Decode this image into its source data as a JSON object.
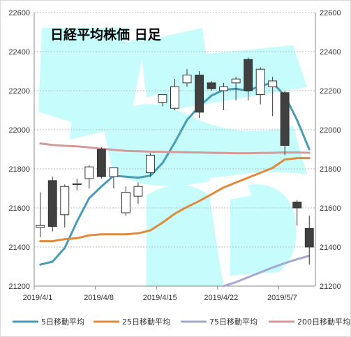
{
  "chart_data": {
    "type": "candlestick",
    "title": "日経平均株価 日足",
    "ylim": [
      21200,
      22600
    ],
    "y_ticks": [
      21200,
      21400,
      21600,
      21800,
      22000,
      22200,
      22400,
      22600
    ],
    "y_tick_labels": [
      "21200",
      "21400",
      "21600",
      "21800",
      "22000",
      "22200",
      "22400",
      "22600"
    ],
    "x_labels": [
      {
        "index": 0,
        "label": "2019/4/1"
      },
      {
        "index": 5,
        "label": "2019/4/8"
      },
      {
        "index": 10,
        "label": "2019/4/15"
      },
      {
        "index": 15,
        "label": "2019/4/22"
      },
      {
        "index": 20,
        "label": "2019/5/7"
      }
    ],
    "colors": {
      "background_logo": "#c6fcfc",
      "up_candle_fill": "#ffffff",
      "down_candle_fill": "#404040",
      "ma5": "#4a9bb5",
      "ma25": "#e08a3c",
      "ma75": "#a3a9cf",
      "ma200": "#d49a9a",
      "gridline": "#bbbbbb"
    },
    "candles": [
      {
        "open": 21500,
        "high": 21680,
        "low": 21450,
        "close": 21510
      },
      {
        "open": 21740,
        "high": 21760,
        "low": 21480,
        "close": 21505
      },
      {
        "open": 21565,
        "high": 21720,
        "low": 21500,
        "close": 21710
      },
      {
        "open": 21720,
        "high": 21750,
        "low": 21690,
        "close": 21725
      },
      {
        "open": 21750,
        "high": 21820,
        "low": 21700,
        "close": 21810
      },
      {
        "open": 21900,
        "high": 21910,
        "low": 21750,
        "close": 21760
      },
      {
        "open": 21760,
        "high": 21800,
        "low": 21700,
        "close": 21805
      },
      {
        "open": 21575,
        "high": 21710,
        "low": 21560,
        "close": 21680
      },
      {
        "open": 21660,
        "high": 21730,
        "low": 21620,
        "close": 21710
      },
      {
        "open": 21780,
        "high": 21880,
        "low": 21760,
        "close": 21870
      },
      {
        "open": 22140,
        "high": 22180,
        "low": 22120,
        "close": 22180
      },
      {
        "open": 22110,
        "high": 22260,
        "low": 22100,
        "close": 22220
      },
      {
        "open": 22240,
        "high": 22310,
        "low": 22220,
        "close": 22280
      },
      {
        "open": 22280,
        "high": 22300,
        "low": 22060,
        "close": 22090
      },
      {
        "open": 22240,
        "high": 22250,
        "low": 22200,
        "close": 22210
      },
      {
        "open": 22200,
        "high": 22240,
        "low": 22100,
        "close": 22220
      },
      {
        "open": 22240,
        "high": 22270,
        "low": 22150,
        "close": 22260
      },
      {
        "open": 22360,
        "high": 22370,
        "low": 22150,
        "close": 22200
      },
      {
        "open": 22180,
        "high": 22320,
        "low": 22130,
        "close": 22310
      },
      {
        "open": 22220,
        "high": 22270,
        "low": 22070,
        "close": 22250
      },
      {
        "open": 22190,
        "high": 22200,
        "low": 21870,
        "close": 21920
      },
      {
        "open": 21630,
        "high": 21640,
        "low": 21510,
        "close": 21600
      },
      {
        "open": 21495,
        "high": 21560,
        "low": 21310,
        "close": 21400
      }
    ],
    "series": [
      {
        "name": "5日移動平均",
        "color": "#4a9bb5",
        "values": [
          21310,
          21325,
          21395,
          21530,
          21650,
          21710,
          21765,
          21760,
          21755,
          21765,
          21830,
          21935,
          22050,
          22120,
          22175,
          22205,
          22210,
          22200,
          22225,
          22240,
          22175,
          22050,
          21900
        ]
      },
      {
        "name": "25日移動平均",
        "color": "#e08a3c",
        "values": [
          21430,
          21430,
          21440,
          21445,
          21460,
          21465,
          21465,
          21465,
          21470,
          21485,
          21525,
          21570,
          21605,
          21635,
          21670,
          21705,
          21730,
          21755,
          21780,
          21805,
          21848,
          21855,
          21855
        ]
      },
      {
        "name": "75日移動平均",
        "color": "#a3a9cf",
        "values": [
          null,
          null,
          null,
          null,
          null,
          null,
          null,
          null,
          null,
          null,
          null,
          null,
          null,
          null,
          null,
          21200,
          21220,
          21245,
          21270,
          21295,
          21317,
          21337,
          21355
        ]
      },
      {
        "name": "200日移動平均",
        "color": "#d49a9a",
        "values": [
          21930,
          21922,
          21918,
          21915,
          21910,
          21903,
          21897,
          21892,
          21890,
          21888,
          21887,
          21886,
          21885,
          21884,
          21882,
          21881,
          21880,
          21880,
          21881,
          21882,
          21884,
          21884,
          21882
        ]
      }
    ],
    "legend": [
      {
        "label": "5日移動平均",
        "color": "#4a9bb5"
      },
      {
        "label": "25日移動平均",
        "color": "#e08a3c"
      },
      {
        "label": "75日移動平均",
        "color": "#a3a9cf"
      },
      {
        "label": "200日移動平均",
        "color": "#d49a9a"
      }
    ],
    "grid": true,
    "legend_position": "bottom"
  }
}
